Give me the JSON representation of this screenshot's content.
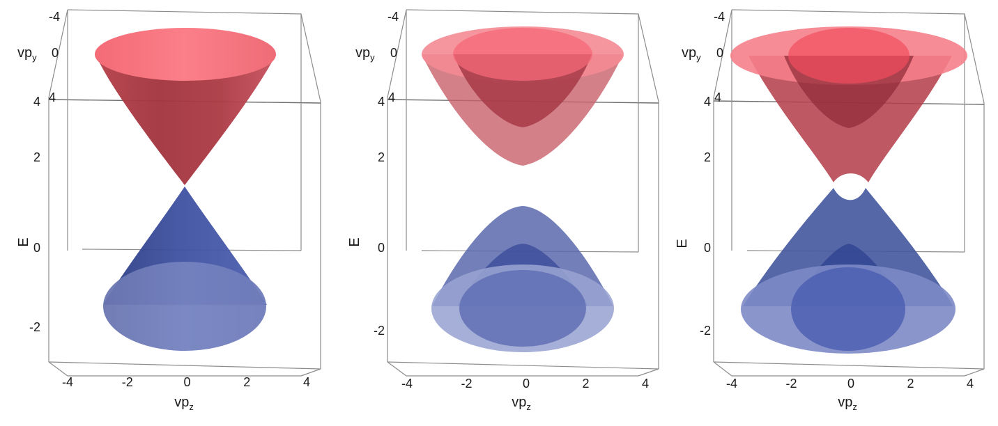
{
  "chart_data": [
    {
      "type": "surface",
      "panel": "massless",
      "axes": {
        "x": {
          "label": "vp",
          "sub": "z",
          "range": [
            -4,
            4
          ],
          "ticks": [
            "-4",
            "-2",
            "0",
            "2",
            "4"
          ]
        },
        "y": {
          "label": "vp",
          "sub": "y",
          "range": [
            -4,
            4
          ],
          "ticks": [
            "-4",
            "0",
            "4"
          ]
        },
        "z": {
          "label": "E",
          "range": [
            -3,
            4
          ],
          "ticks": [
            "-2",
            "0",
            "2",
            "4"
          ]
        }
      },
      "bands": [
        {
          "kind": "conduction",
          "color": "#e8505c",
          "min_energy": 0.0,
          "shells": [
            {
              "opening": 0.0
            }
          ]
        },
        {
          "kind": "valence",
          "color": "#4a5aa8",
          "max_energy": 0.0,
          "shells": [
            {
              "opening": 0.0
            }
          ]
        }
      ]
    },
    {
      "type": "surface",
      "panel": "gapped-split",
      "axes": {
        "x": {
          "label": "vp",
          "sub": "z",
          "range": [
            -4,
            4
          ],
          "ticks": [
            "-4",
            "-2",
            "0",
            "2",
            "4"
          ]
        },
        "y": {
          "label": "vp",
          "sub": "y",
          "range": [
            -4,
            4
          ],
          "ticks": [
            "-4",
            "0",
            "4"
          ]
        },
        "z": {
          "label": "E",
          "range": [
            -3,
            4
          ],
          "ticks": [
            "-2",
            "0",
            "2",
            "4"
          ]
        }
      },
      "bands": [
        {
          "kind": "conduction",
          "color": "#e8505c",
          "shells": [
            {
              "min_energy": 1.8
            },
            {
              "min_energy": 3.0
            }
          ]
        },
        {
          "kind": "valence",
          "color": "#4a5aa8",
          "shells": [
            {
              "max_energy": -0.9
            },
            {
              "max_energy": -1.8
            }
          ]
        }
      ]
    },
    {
      "type": "surface",
      "panel": "avoided-crossing",
      "axes": {
        "x": {
          "label": "vp",
          "sub": "z",
          "range": [
            -4,
            4
          ],
          "ticks": [
            "-4",
            "-2",
            "0",
            "2",
            "4"
          ]
        },
        "y": {
          "label": "vp",
          "sub": "y",
          "range": [
            -4,
            4
          ],
          "ticks": [
            "-4",
            "0",
            "4"
          ]
        },
        "z": {
          "label": "E",
          "range": [
            -3,
            4
          ],
          "ticks": [
            "-2",
            "0",
            "2",
            "4"
          ]
        }
      },
      "bands": [
        {
          "kind": "conduction",
          "color": "#e8505c",
          "shells": [
            {
              "min_energy": 1.8,
              "center_dip": 2.2
            },
            {
              "min_energy": 3.0
            }
          ]
        },
        {
          "kind": "valence",
          "color": "#4a5aa8",
          "shells": [
            {
              "max_energy": -1.2,
              "center_bump": -1.6
            },
            {
              "max_energy": -0.2
            }
          ]
        }
      ]
    }
  ]
}
